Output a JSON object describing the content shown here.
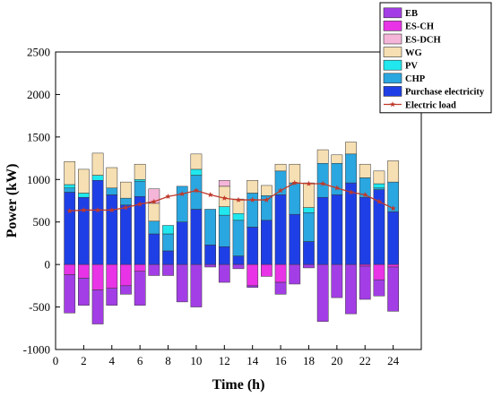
{
  "chart_data": {
    "type": "bar",
    "stacked": true,
    "title": "",
    "xlabel": "Time (h)",
    "ylabel": "Power (kW)",
    "xlim": [
      0,
      26
    ],
    "ylim": [
      -1000,
      2500
    ],
    "xticks": [
      0,
      2,
      4,
      6,
      8,
      10,
      12,
      14,
      16,
      18,
      20,
      22,
      24
    ],
    "yticks": [
      -1000,
      -500,
      0,
      500,
      1000,
      1500,
      2000,
      2500
    ],
    "grid": false,
    "legend_position": "top-right",
    "categories": [
      1,
      2,
      3,
      4,
      5,
      6,
      7,
      8,
      9,
      10,
      11,
      12,
      13,
      14,
      15,
      16,
      17,
      18,
      19,
      20,
      21,
      22,
      23,
      24
    ],
    "series": [
      {
        "name": "Purchase electricity",
        "stack": "positive",
        "color": "#1f3fe6",
        "values": [
          850,
          790,
          990,
          820,
          700,
          800,
          360,
          160,
          500,
          650,
          230,
          210,
          100,
          440,
          520,
          820,
          590,
          270,
          790,
          820,
          960,
          790,
          880,
          620
        ]
      },
      {
        "name": "CHP",
        "stack": "positive",
        "color": "#2aa6e0",
        "values": [
          50,
          0,
          0,
          80,
          80,
          180,
          150,
          200,
          420,
          400,
          420,
          370,
          420,
          400,
          290,
          280,
          370,
          340,
          400,
          370,
          340,
          230,
          20,
          350
        ]
      },
      {
        "name": "PV",
        "stack": "positive",
        "color": "#20e8ee",
        "values": [
          40,
          50,
          60,
          0,
          0,
          20,
          0,
          100,
          0,
          70,
          0,
          100,
          80,
          0,
          0,
          0,
          0,
          60,
          0,
          0,
          0,
          0,
          50,
          0
        ]
      },
      {
        "name": "WG",
        "stack": "positive",
        "color": "#f6dfb2",
        "values": [
          270,
          280,
          260,
          240,
          190,
          180,
          210,
          0,
          0,
          180,
          0,
          240,
          170,
          150,
          120,
          80,
          220,
          290,
          160,
          100,
          140,
          160,
          150,
          250
        ]
      },
      {
        "name": "ES-DCH",
        "stack": "positive",
        "color": "#f5b5d8",
        "values": [
          0,
          0,
          0,
          0,
          0,
          0,
          170,
          0,
          0,
          0,
          0,
          70,
          0,
          0,
          0,
          0,
          0,
          0,
          0,
          0,
          0,
          0,
          0,
          0
        ]
      },
      {
        "name": "ES-CH",
        "stack": "negative",
        "color": "#e833e6",
        "values": [
          -120,
          -160,
          -300,
          -280,
          -250,
          -80,
          0,
          0,
          0,
          0,
          0,
          0,
          0,
          -250,
          -140,
          -210,
          0,
          0,
          0,
          0,
          0,
          -20,
          -180,
          -30
        ]
      },
      {
        "name": "EB",
        "stack": "negative",
        "color": "#a33ee6",
        "values": [
          -450,
          -320,
          -400,
          -200,
          -100,
          -400,
          -130,
          -130,
          -440,
          -500,
          -30,
          -210,
          -50,
          -20,
          0,
          -140,
          -230,
          -40,
          -670,
          -390,
          -580,
          -390,
          -190,
          -520
        ]
      },
      {
        "name": "Electric load",
        "type": "line",
        "color": "#c0392b",
        "marker": "star",
        "values": [
          630,
          640,
          640,
          640,
          670,
          710,
          740,
          800,
          830,
          870,
          820,
          780,
          760,
          760,
          760,
          870,
          960,
          950,
          950,
          900,
          850,
          820,
          740,
          660
        ]
      }
    ]
  }
}
